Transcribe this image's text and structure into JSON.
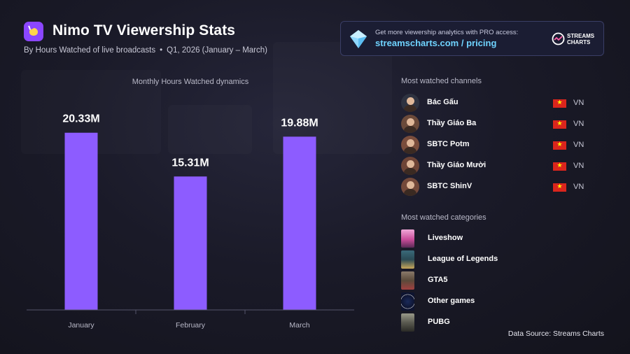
{
  "header": {
    "title": "Nimo TV Viewership Stats",
    "subtitle_left": "By Hours Watched of live broadcasts",
    "subtitle_sep": "•",
    "subtitle_right": "Q1, 2026 (January – March)"
  },
  "promo": {
    "line1": "Get more viewership analytics with PRO access:",
    "line2": "streamscharts.com / pricing",
    "brand_line1": "STREAMS",
    "brand_line2": "CHARTS"
  },
  "chart_data": {
    "type": "bar",
    "title": "Monthly Hours Watched dynamics",
    "categories": [
      "January",
      "February",
      "March"
    ],
    "values": [
      20.33,
      15.31,
      19.88
    ],
    "value_labels": [
      "20.33M",
      "15.31M",
      "19.88M"
    ],
    "unit": "M",
    "ylim": [
      0,
      24
    ],
    "grid": false,
    "bar_color": "#8d5cff"
  },
  "channels": {
    "label": "Most watched channels",
    "items": [
      {
        "name": "Bác Gấu",
        "country": "VN"
      },
      {
        "name": "Thầy Giáo Ba",
        "country": "VN"
      },
      {
        "name": "SBTC Potm",
        "country": "VN"
      },
      {
        "name": "Thầy Giáo Mười",
        "country": "VN"
      },
      {
        "name": "SBTC ShinV",
        "country": "VN"
      }
    ]
  },
  "categories": {
    "label": "Most watched categories",
    "items": [
      {
        "name": "Liveshow"
      },
      {
        "name": "League of Legends"
      },
      {
        "name": "GTA5"
      },
      {
        "name": "Other games"
      },
      {
        "name": "PUBG"
      }
    ]
  },
  "footer": {
    "source": "Data Source: Streams Charts"
  },
  "colors": {
    "background": "#15151f",
    "accent": "#8d5cff",
    "link": "#6fd3ff"
  }
}
